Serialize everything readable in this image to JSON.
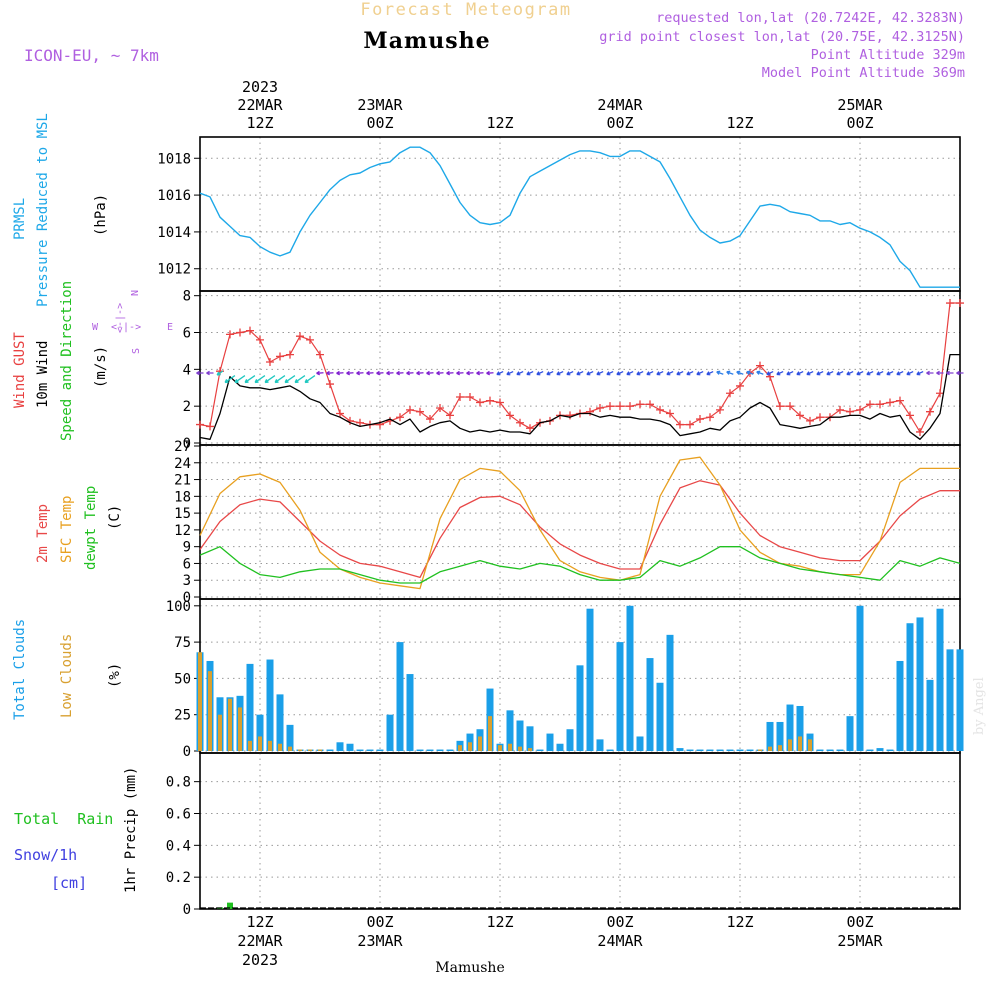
{
  "header": {
    "product": "Forecast Meteogram",
    "location": "Mamushe",
    "model": "ICON-EU, ~ 7km",
    "requested": "requested lon,lat (20.7242E, 42.3283N)",
    "gridpoint": "grid point closest lon,lat (20.75E, 42.3125N)",
    "point_alt": "Point Altitude 329m",
    "model_alt": "Model Point Altitude 369m",
    "footer_location": "Mamushe",
    "watermark": "by Angel"
  },
  "time_axis": {
    "year": "2023",
    "ticks": [
      {
        "h": 12,
        "top": "12Z",
        "date": "22MAR"
      },
      {
        "h": 24,
        "top": "00Z",
        "date": "23MAR"
      },
      {
        "h": 36,
        "top": "12Z",
        "date": ""
      },
      {
        "h": 48,
        "top": "00Z",
        "date": "24MAR"
      },
      {
        "h": 60,
        "top": "12Z",
        "date": ""
      },
      {
        "h": 72,
        "top": "00Z",
        "date": "25MAR"
      }
    ],
    "year_under_tick": 12,
    "range_hours": [
      6,
      82
    ]
  },
  "panel_labels": {
    "pressure": {
      "line1": "PRMSL",
      "line2": "Pressure Reduced to MSL",
      "unit": "(hPa)"
    },
    "wind": {
      "gust": "Wind GUST",
      "wind": "10m Wind",
      "dir": "Speed and Direction",
      "unit": "(m/s)",
      "compass_ns": "N",
      "compass_s": "S",
      "compass_w": "W",
      "compass_e": "E"
    },
    "temp": {
      "t2m": "2m Temp",
      "sfc": "SFC Temp",
      "dew": "dewpt Temp",
      "unit": "(C)"
    },
    "clouds": {
      "total": "Total Clouds",
      "low": "Low Clouds",
      "unit": "(%)"
    },
    "precip": {
      "rain": "Total  Rain",
      "snow": "Snow/1h",
      "snow_unit": "[cm]",
      "axis": "1hr Precip (mm)"
    }
  },
  "colors": {
    "pressure": "#1ea8e8",
    "gust": "#e84040",
    "wind": "#000000",
    "temp2m": "#e84848",
    "sfc": "#e8a020",
    "dew": "#20c020",
    "total_cloud": "#1a9fe8",
    "low_cloud": "#d8a030",
    "rain": "#20c020",
    "snow": "#4040e0",
    "label_purple": "#b060e0",
    "title_orange": "#f0d090"
  },
  "chart_data": [
    {
      "type": "line",
      "panel": "pressure",
      "ylabel": "(hPa)",
      "yticks": [
        1012,
        1014,
        1016,
        1018
      ],
      "ylim": [
        1010.9,
        1019.1
      ],
      "grid": true,
      "series": [
        {
          "name": "PRMSL",
          "x": [
            6,
            7,
            8,
            9,
            10,
            11,
            12,
            13,
            14,
            15,
            16,
            17,
            18,
            19,
            20,
            21,
            22,
            23,
            24,
            25,
            26,
            27,
            28,
            29,
            30,
            31,
            32,
            33,
            34,
            35,
            36,
            37,
            38,
            39,
            40,
            41,
            42,
            43,
            44,
            45,
            46,
            47,
            48,
            49,
            50,
            51,
            52,
            53,
            54,
            55,
            56,
            57,
            58,
            59,
            60,
            61,
            62,
            63,
            64,
            65,
            66,
            67,
            68,
            69,
            70,
            71,
            72,
            73,
            74,
            75,
            76,
            77,
            78,
            79,
            80,
            81,
            82
          ],
          "values": [
            1016.1,
            1015.9,
            1014.8,
            1014.3,
            1013.8,
            1013.7,
            1013.2,
            1012.9,
            1012.7,
            1012.9,
            1014.0,
            1014.9,
            1015.6,
            1016.3,
            1016.8,
            1017.1,
            1017.2,
            1017.5,
            1017.7,
            1017.8,
            1018.3,
            1018.6,
            1018.6,
            1018.3,
            1017.6,
            1016.6,
            1015.6,
            1014.9,
            1014.5,
            1014.4,
            1014.5,
            1014.9,
            1016.1,
            1017.0,
            1017.3,
            1017.6,
            1017.9,
            1018.2,
            1018.4,
            1018.4,
            1018.3,
            1018.1,
            1018.1,
            1018.4,
            1018.4,
            1018.1,
            1017.8,
            1016.9,
            1015.9,
            1014.9,
            1014.1,
            1013.7,
            1013.4,
            1013.5,
            1013.8,
            1014.6,
            1015.4,
            1015.5,
            1015.4,
            1015.1,
            1015.0,
            1014.9,
            1014.6,
            1014.6,
            1014.4,
            1014.5,
            1014.2,
            1014.0,
            1013.7,
            1013.3,
            1012.4,
            1011.9,
            1011.0,
            1011.0,
            1011.0,
            1011.0,
            1011.0
          ]
        }
      ]
    },
    {
      "type": "line",
      "panel": "wind",
      "ylabel": "(m/s)",
      "yticks": [
        0,
        2,
        4,
        6,
        8
      ],
      "ylim": [
        0,
        8.2
      ],
      "grid": true,
      "series": [
        {
          "name": "Wind GUST",
          "x": [
            6,
            7,
            8,
            9,
            10,
            11,
            12,
            13,
            14,
            15,
            16,
            17,
            18,
            19,
            20,
            21,
            22,
            23,
            24,
            25,
            26,
            27,
            28,
            29,
            30,
            31,
            32,
            33,
            34,
            35,
            36,
            37,
            38,
            39,
            40,
            41,
            42,
            43,
            44,
            45,
            46,
            47,
            48,
            49,
            50,
            51,
            52,
            53,
            54,
            55,
            56,
            57,
            58,
            59,
            60,
            61,
            62,
            63,
            64,
            65,
            66,
            67,
            68,
            69,
            70,
            71,
            72,
            73,
            74,
            75,
            76,
            77,
            78,
            79,
            80,
            81,
            82
          ],
          "values": [
            1.0,
            0.9,
            3.9,
            5.9,
            6.0,
            6.1,
            5.6,
            4.4,
            4.7,
            4.8,
            5.8,
            5.6,
            4.8,
            3.2,
            1.6,
            1.2,
            1.1,
            1.0,
            1.0,
            1.2,
            1.4,
            1.8,
            1.7,
            1.3,
            1.9,
            1.5,
            2.5,
            2.5,
            2.2,
            2.3,
            2.2,
            1.5,
            1.1,
            0.8,
            1.1,
            1.2,
            1.5,
            1.5,
            1.6,
            1.7,
            1.9,
            2.0,
            2.0,
            2.0,
            2.1,
            2.1,
            1.8,
            1.6,
            1.0,
            1.0,
            1.3,
            1.4,
            1.8,
            2.7,
            3.1,
            3.8,
            4.2,
            3.6,
            2.0,
            2.0,
            1.5,
            1.2,
            1.4,
            1.4,
            1.8,
            1.7,
            1.8,
            2.1,
            2.1,
            2.2,
            2.3,
            1.5,
            0.6,
            1.7,
            2.7,
            7.6,
            7.6
          ]
        },
        {
          "name": "10m Wind",
          "x": [
            6,
            7,
            8,
            9,
            10,
            11,
            12,
            13,
            14,
            15,
            16,
            17,
            18,
            19,
            20,
            21,
            22,
            23,
            24,
            25,
            26,
            27,
            28,
            29,
            30,
            31,
            32,
            33,
            34,
            35,
            36,
            37,
            38,
            39,
            40,
            41,
            42,
            43,
            44,
            45,
            46,
            47,
            48,
            49,
            50,
            51,
            52,
            53,
            54,
            55,
            56,
            57,
            58,
            59,
            60,
            61,
            62,
            63,
            64,
            65,
            66,
            67,
            68,
            69,
            70,
            71,
            72,
            73,
            74,
            75,
            76,
            77,
            78,
            79,
            80,
            81,
            82
          ],
          "values": [
            0.3,
            0.2,
            1.6,
            3.6,
            3.1,
            3.0,
            3.0,
            2.9,
            3.0,
            3.1,
            2.8,
            2.4,
            2.2,
            1.6,
            1.4,
            1.1,
            0.9,
            1.0,
            1.1,
            1.3,
            1.0,
            1.3,
            0.6,
            0.9,
            1.1,
            1.2,
            0.8,
            0.6,
            0.7,
            0.6,
            0.7,
            0.6,
            0.6,
            0.5,
            1.1,
            1.2,
            1.5,
            1.4,
            1.6,
            1.6,
            1.4,
            1.5,
            1.4,
            1.4,
            1.3,
            1.3,
            1.2,
            1.0,
            0.4,
            0.5,
            0.6,
            0.8,
            0.7,
            1.2,
            1.4,
            1.9,
            2.2,
            1.9,
            1.0,
            0.9,
            0.8,
            0.9,
            1.0,
            1.4,
            1.4,
            1.5,
            1.5,
            1.3,
            1.6,
            1.4,
            1.5,
            0.6,
            0.2,
            0.8,
            1.6,
            4.8,
            4.8
          ]
        }
      ],
      "direction_arrows_note": "wind direction arrows at y=3.8 m/s level"
    },
    {
      "type": "line",
      "panel": "temperature",
      "ylabel": "(C)",
      "yticks": [
        0,
        3,
        6,
        9,
        12,
        15,
        18,
        21,
        24,
        27
      ],
      "ylim": [
        0,
        27
      ],
      "grid": true,
      "series": [
        {
          "name": "2m Temp",
          "x": [
            6,
            8,
            10,
            12,
            14,
            16,
            18,
            20,
            22,
            24,
            26,
            28,
            30,
            32,
            34,
            36,
            38,
            40,
            42,
            44,
            46,
            48,
            50,
            52,
            54,
            56,
            58,
            60,
            62,
            64,
            66,
            68,
            70,
            72,
            74,
            76,
            78,
            80,
            82
          ],
          "values": [
            8.5,
            13.5,
            16.5,
            17.5,
            17.0,
            13.5,
            10.0,
            7.5,
            6.0,
            5.5,
            4.5,
            3.5,
            10.5,
            16.0,
            17.8,
            18.0,
            16.5,
            12.5,
            9.5,
            7.5,
            6.0,
            5.0,
            5.0,
            13.0,
            19.5,
            20.8,
            20.0,
            15.0,
            11.0,
            9.0,
            8.0,
            7.0,
            6.5,
            6.5,
            10.0,
            14.5,
            17.5,
            19.0,
            19.0
          ]
        },
        {
          "name": "SFC Temp",
          "x": [
            6,
            8,
            10,
            12,
            14,
            16,
            18,
            20,
            22,
            24,
            26,
            28,
            30,
            32,
            34,
            36,
            38,
            40,
            42,
            44,
            46,
            48,
            50,
            52,
            54,
            56,
            58,
            60,
            62,
            64,
            66,
            68,
            70,
            72,
            74,
            76,
            78,
            80,
            82
          ],
          "values": [
            11.0,
            18.5,
            21.5,
            22.0,
            20.5,
            15.5,
            8.0,
            5.0,
            3.5,
            2.5,
            2.0,
            1.5,
            14.0,
            21.0,
            23.0,
            22.5,
            19.0,
            12.0,
            6.5,
            4.5,
            3.5,
            3.0,
            4.0,
            18.0,
            24.5,
            25.0,
            20.0,
            12.0,
            8.0,
            6.0,
            5.5,
            4.5,
            4.0,
            4.0,
            10.0,
            20.5,
            23.0,
            23.0,
            23.0
          ]
        },
        {
          "name": "dewpt Temp",
          "x": [
            6,
            8,
            10,
            12,
            14,
            16,
            18,
            20,
            22,
            24,
            26,
            28,
            30,
            32,
            34,
            36,
            38,
            40,
            42,
            44,
            46,
            48,
            50,
            52,
            54,
            56,
            58,
            60,
            62,
            64,
            66,
            68,
            70,
            72,
            74,
            76,
            78,
            80,
            82
          ],
          "values": [
            7.5,
            9.0,
            6.0,
            4.0,
            3.5,
            4.5,
            5.0,
            5.0,
            4.0,
            3.0,
            2.5,
            2.5,
            4.5,
            5.5,
            6.5,
            5.5,
            5.0,
            6.0,
            5.5,
            4.0,
            3.0,
            3.0,
            3.5,
            6.5,
            5.5,
            7.0,
            9.0,
            9.0,
            7.0,
            6.0,
            5.0,
            4.5,
            4.0,
            3.5,
            3.0,
            6.5,
            5.5,
            7.0,
            6.0
          ]
        }
      ]
    },
    {
      "type": "bar",
      "panel": "clouds",
      "ylabel": "(%)",
      "yticks": [
        0,
        25,
        50,
        75,
        100
      ],
      "ylim": [
        0,
        104
      ],
      "grid": true,
      "x": [
        6,
        7,
        8,
        9,
        10,
        11,
        12,
        13,
        14,
        15,
        16,
        17,
        18,
        19,
        20,
        21,
        22,
        23,
        24,
        25,
        26,
        27,
        28,
        29,
        30,
        31,
        32,
        33,
        34,
        35,
        36,
        37,
        38,
        39,
        40,
        41,
        42,
        43,
        44,
        45,
        46,
        47,
        48,
        49,
        50,
        51,
        52,
        53,
        54,
        55,
        56,
        57,
        58,
        59,
        60,
        61,
        62,
        63,
        64,
        65,
        66,
        67,
        68,
        69,
        70,
        71,
        72,
        73,
        74,
        75,
        76,
        77,
        78,
        79,
        80,
        81,
        82
      ],
      "series": [
        {
          "name": "Total Clouds",
          "values": [
            68,
            62,
            37,
            37,
            38,
            60,
            25,
            63,
            39,
            18,
            1,
            1,
            1,
            1,
            6,
            5,
            1,
            1,
            1,
            25,
            75,
            53,
            1,
            1,
            1,
            1,
            7,
            12,
            15,
            43,
            5,
            28,
            21,
            17,
            1,
            12,
            5,
            15,
            59,
            98,
            8,
            1,
            75,
            100,
            10,
            64,
            47,
            80,
            2,
            1,
            1,
            1,
            1,
            1,
            1,
            1,
            1,
            20,
            20,
            32,
            31,
            12,
            1,
            1,
            1,
            24,
            100,
            1,
            2,
            1,
            62,
            88,
            92,
            49,
            98,
            70,
            70
          ]
        },
        {
          "name": "Low Clouds",
          "values": [
            68,
            55,
            25,
            36,
            30,
            7,
            10,
            7,
            5,
            3,
            1,
            1,
            1,
            0,
            0,
            0,
            0,
            0,
            0,
            0,
            0,
            0,
            0,
            0,
            0,
            0,
            4,
            6,
            10,
            24,
            4,
            5,
            3,
            2,
            0,
            0,
            0,
            0,
            0,
            0,
            0,
            0,
            0,
            0,
            0,
            0,
            0,
            0,
            0,
            0,
            0,
            0,
            0,
            0,
            0,
            0,
            1,
            3,
            4,
            8,
            10,
            8,
            0,
            0,
            0,
            0,
            0,
            0,
            0,
            0,
            0,
            0,
            0,
            0,
            0,
            0,
            0
          ]
        }
      ]
    },
    {
      "type": "bar",
      "panel": "precip",
      "ylabel": "1hr Precip (mm)",
      "yticks": [
        0,
        0.2,
        0.4,
        0.6,
        0.8
      ],
      "ylim": [
        0,
        0.98
      ],
      "grid": true,
      "x": [
        8,
        9
      ],
      "series": [
        {
          "name": "Total Rain",
          "values": [
            0.01,
            0.04
          ]
        }
      ]
    }
  ]
}
